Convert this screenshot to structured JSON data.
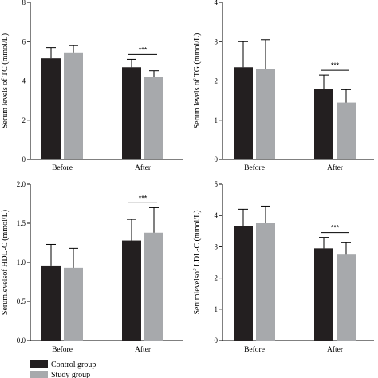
{
  "colors": {
    "control": "#231f20",
    "study": "#a7a9ac",
    "axis": "#000000",
    "error": "#000000"
  },
  "legend": {
    "items": [
      {
        "label": "Control group",
        "color": "#231f20"
      },
      {
        "label": "Study group",
        "color": "#a7a9ac"
      }
    ],
    "placement": "bottom-left"
  },
  "chart_data": [
    {
      "type": "bar",
      "categories": [
        "Before",
        "After"
      ],
      "ylabel": "Serum levels of TC (mmol/L)",
      "ylim": [
        0,
        8
      ],
      "yticks": [
        0,
        2,
        4,
        6,
        8
      ],
      "grid": false,
      "series": [
        {
          "name": "Control group",
          "values": [
            5.15,
            4.7
          ],
          "errors": [
            0.55,
            0.4
          ]
        },
        {
          "name": "Study group",
          "values": [
            5.45,
            4.22
          ],
          "errors": [
            0.35,
            0.3
          ]
        }
      ],
      "significance": [
        {
          "category": "After",
          "label": "***"
        }
      ]
    },
    {
      "type": "bar",
      "categories": [
        "Before",
        "After"
      ],
      "ylabel": "Serum levels of TG (mmol/L)",
      "ylim": [
        0,
        4
      ],
      "yticks": [
        0,
        1,
        2,
        3,
        4
      ],
      "grid": false,
      "series": [
        {
          "name": "Control group",
          "values": [
            2.35,
            1.8
          ],
          "errors": [
            0.65,
            0.35
          ]
        },
        {
          "name": "Study group",
          "values": [
            2.3,
            1.45
          ],
          "errors": [
            0.75,
            0.33
          ]
        }
      ],
      "significance": [
        {
          "category": "After",
          "label": "***"
        }
      ]
    },
    {
      "type": "bar",
      "categories": [
        "Before",
        "After"
      ],
      "ylabel": "Serumlevelsof HDL-C (mmol/L)",
      "ylim": [
        0,
        2.0
      ],
      "yticks": [
        0.0,
        0.5,
        1.0,
        1.5,
        2.0
      ],
      "grid": false,
      "series": [
        {
          "name": "Control group",
          "values": [
            0.96,
            1.28
          ],
          "errors": [
            0.27,
            0.27
          ]
        },
        {
          "name": "Study group",
          "values": [
            0.93,
            1.38
          ],
          "errors": [
            0.25,
            0.32
          ]
        }
      ],
      "significance": [
        {
          "category": "After",
          "label": "***"
        }
      ]
    },
    {
      "type": "bar",
      "categories": [
        "Before",
        "After"
      ],
      "ylabel": "Serumlevelsof LDL-C (mmol/L)",
      "ylim": [
        0,
        5
      ],
      "yticks": [
        0,
        1,
        2,
        3,
        4,
        5
      ],
      "grid": false,
      "series": [
        {
          "name": "Control group",
          "values": [
            3.65,
            2.95
          ],
          "errors": [
            0.55,
            0.35
          ]
        },
        {
          "name": "Study group",
          "values": [
            3.75,
            2.75
          ],
          "errors": [
            0.55,
            0.38
          ]
        }
      ],
      "significance": [
        {
          "category": "After",
          "label": "***"
        }
      ]
    }
  ]
}
